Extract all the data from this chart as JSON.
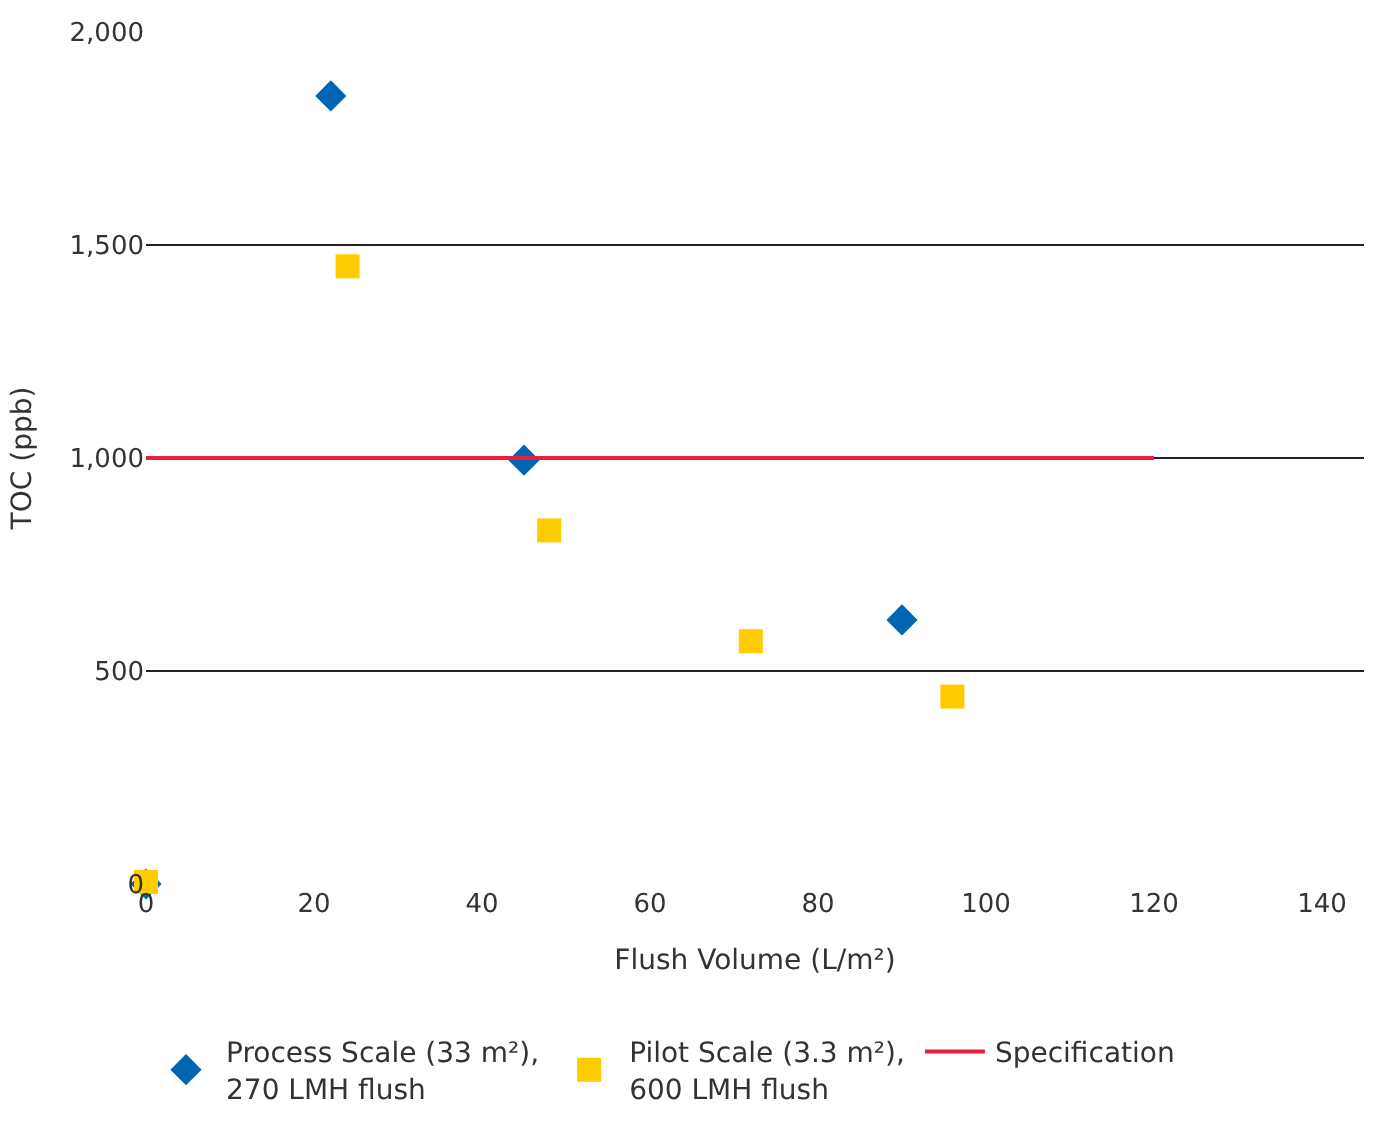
{
  "chart_data": {
    "type": "scatter",
    "xlabel": "Flush Volume (L/m²)",
    "ylabel": "TOC (ppb)",
    "xlim": [
      0,
      145
    ],
    "xticks": [
      0,
      20,
      40,
      60,
      80,
      100,
      120,
      140
    ],
    "ylim": [
      0,
      2000
    ],
    "yticks": [
      0,
      {
        "value": 500,
        "label": "500"
      },
      {
        "value": 1000,
        "label": "1,000"
      },
      {
        "value": 1500,
        "label": "1,500"
      },
      {
        "value": 2000,
        "label": "2,000"
      }
    ],
    "grid": "y",
    "legend": "bottom",
    "series": [
      {
        "name": "Process Scale (33 m²),\n270 LMH flush",
        "color": "#0066b3",
        "marker": "diamond",
        "x": [
          0,
          22,
          45,
          90
        ],
        "values": [
          0,
          1850,
          995,
          620
        ]
      },
      {
        "name": "Pilot Scale (3.3 m²),\n600 LMH flush",
        "color": "#ffcc00",
        "marker": "square",
        "x": [
          0,
          24,
          48,
          72,
          96
        ],
        "values": [
          5,
          1450,
          830,
          570,
          440
        ]
      },
      {
        "name": "Specification",
        "type": "line",
        "color": "#e8203a",
        "line_style": "solid",
        "marker": "none",
        "x": [
          0,
          120
        ],
        "values": [
          1000,
          1000
        ]
      }
    ]
  }
}
